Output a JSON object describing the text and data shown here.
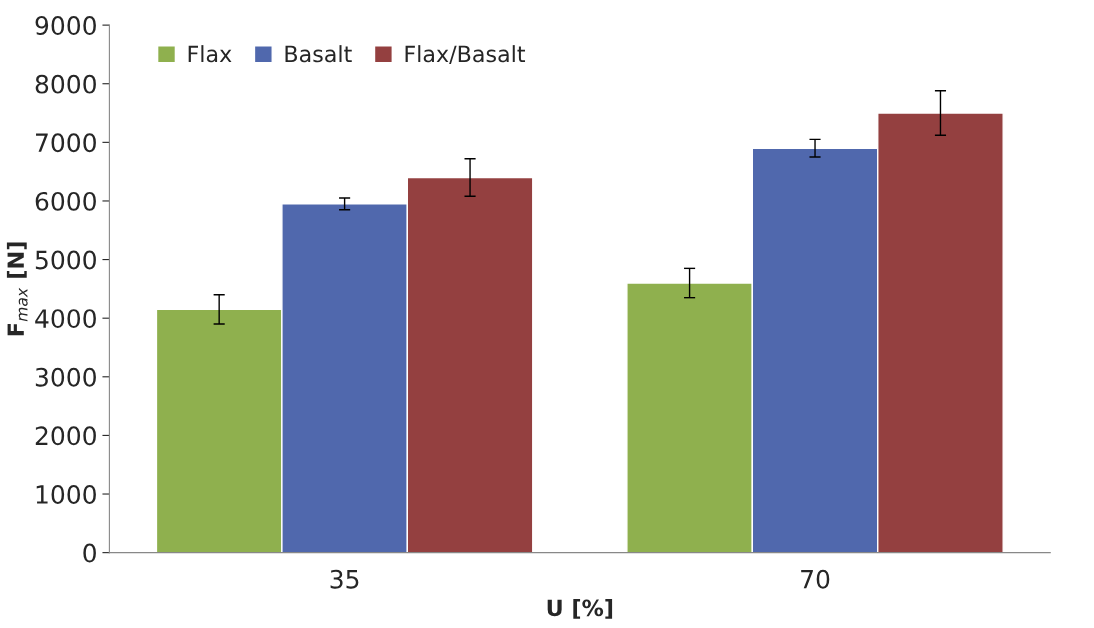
{
  "chart_data": {
    "type": "bar",
    "xlabel": "U [%]",
    "ylabel": "F$_{max}$ [N]",
    "categories": [
      "35",
      "70"
    ],
    "series": [
      {
        "name": "Flax",
        "color": "#8fb04e",
        "values": [
          4150,
          4600
        ],
        "errors": [
          250,
          250
        ]
      },
      {
        "name": "Basalt",
        "color": "#5068ad",
        "values": [
          5950,
          6900
        ],
        "errors": [
          100,
          150
        ]
      },
      {
        "name": "Flax/Basalt",
        "color": "#944040",
        "values": [
          6400,
          7500
        ],
        "errors": [
          320,
          380
        ]
      }
    ],
    "ylim": [
      0,
      9000
    ],
    "yticks": [
      0,
      1000,
      2000,
      3000,
      4000,
      5000,
      6000,
      7000,
      8000,
      9000
    ],
    "grid": false,
    "legend": "top left"
  }
}
